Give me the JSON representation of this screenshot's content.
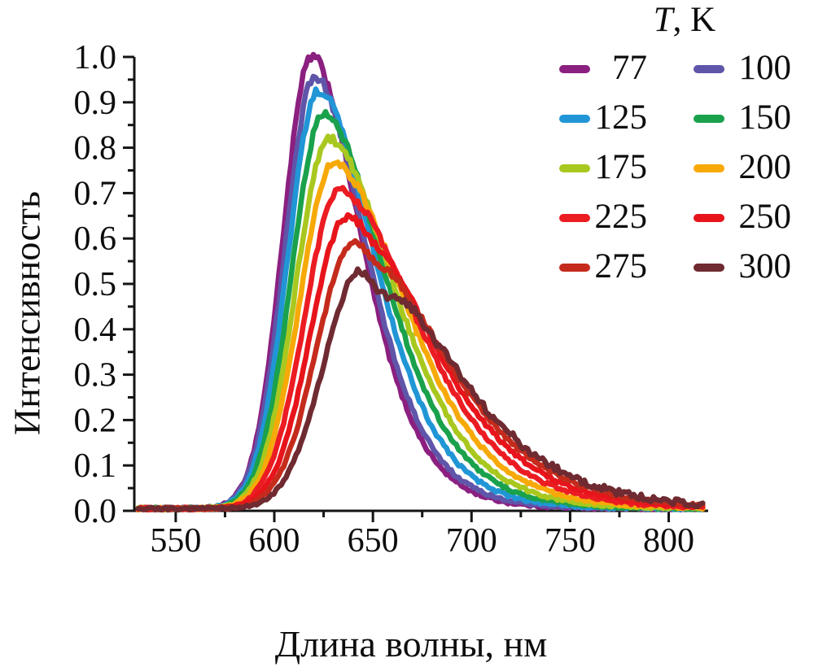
{
  "figure": {
    "background": "#ffffff",
    "axis_color": "#141414",
    "text_color": "#0d0d0d"
  },
  "chart_data": {
    "type": "line",
    "title": "",
    "xlabel": "Длина волны, нм",
    "ylabel": "Интенсивность",
    "xlim": [
      529,
      820
    ],
    "ylim": [
      0.0,
      1.0
    ],
    "grid": false,
    "legend_position": "top-right",
    "x_major_ticks": [
      550,
      600,
      650,
      700,
      750,
      800
    ],
    "x_tick_labels": [
      "550",
      "600",
      "650",
      "700",
      "750",
      "800"
    ],
    "x_minor_ticks": [
      575,
      625,
      675,
      725,
      775
    ],
    "y_major_ticks": [
      0.0,
      0.1,
      0.2,
      0.3,
      0.4,
      0.5,
      0.6,
      0.7,
      0.8,
      0.9,
      1.0
    ],
    "y_tick_labels": [
      "0.0",
      "0.1",
      "0.2",
      "0.3",
      "0.4",
      "0.5",
      "0.6",
      "0.7",
      "0.8",
      "0.9",
      "1.0"
    ],
    "y_minor_ticks": [
      0.05,
      0.15,
      0.25,
      0.35,
      0.45,
      0.55,
      0.65,
      0.75,
      0.85,
      0.95
    ],
    "legend": {
      "title_var": "T",
      "title_unit": ", K",
      "columns": [
        [
          0,
          2,
          4,
          6,
          8
        ],
        [
          1,
          3,
          5,
          7,
          9
        ]
      ]
    },
    "baseline_intensity": 0.005,
    "tail_skew": 0.12,
    "series": [
      {
        "name": "77",
        "temperature_K": 77,
        "color": "#8B2080",
        "peak_nm": 619,
        "peak_intensity": 0.995,
        "sigma_left_nm": 14.5,
        "sigma_right_nm": 22,
        "dip_nm": 0,
        "dip_amp": 0,
        "dip_w": 1
      },
      {
        "name": "100",
        "temperature_K": 100,
        "color": "#5F55A9",
        "peak_nm": 620.5,
        "peak_intensity": 0.95,
        "sigma_left_nm": 15,
        "sigma_right_nm": 23,
        "dip_nm": 0,
        "dip_amp": 0,
        "dip_w": 1
      },
      {
        "name": "125",
        "temperature_K": 125,
        "color": "#2196D6",
        "peak_nm": 622.5,
        "peak_intensity": 0.92,
        "sigma_left_nm": 15.5,
        "sigma_right_nm": 25,
        "dip_nm": 0,
        "dip_amp": 0,
        "dip_w": 1
      },
      {
        "name": "150",
        "temperature_K": 150,
        "color": "#1AA14C",
        "peak_nm": 625,
        "peak_intensity": 0.87,
        "sigma_left_nm": 16,
        "sigma_right_nm": 27,
        "dip_nm": 0,
        "dip_amp": 0,
        "dip_w": 1
      },
      {
        "name": "175",
        "temperature_K": 175,
        "color": "#A9C81F",
        "peak_nm": 627.5,
        "peak_intensity": 0.815,
        "sigma_left_nm": 16.5,
        "sigma_right_nm": 29,
        "dip_nm": 0,
        "dip_amp": 0,
        "dip_w": 1
      },
      {
        "name": "200",
        "temperature_K": 200,
        "color": "#F7A908",
        "peak_nm": 630,
        "peak_intensity": 0.76,
        "sigma_left_nm": 17,
        "sigma_right_nm": 31.5,
        "dip_nm": 0,
        "dip_amp": 0,
        "dip_w": 1
      },
      {
        "name": "225",
        "temperature_K": 225,
        "color": "#EC1C23",
        "peak_nm": 633,
        "peak_intensity": 0.7,
        "sigma_left_nm": 17.5,
        "sigma_right_nm": 34,
        "dip_nm": 0,
        "dip_amp": 0,
        "dip_w": 1
      },
      {
        "name": "250",
        "temperature_K": 250,
        "color": "#E8141B",
        "peak_nm": 636.5,
        "peak_intensity": 0.64,
        "sigma_left_nm": 18,
        "sigma_right_nm": 36.5,
        "dip_nm": 651,
        "dip_amp": 0.025,
        "dip_w": 6
      },
      {
        "name": "275",
        "temperature_K": 275,
        "color": "#C52B1C",
        "peak_nm": 640,
        "peak_intensity": 0.585,
        "sigma_left_nm": 18.5,
        "sigma_right_nm": 38.5,
        "dip_nm": 652,
        "dip_amp": 0.04,
        "dip_w": 6
      },
      {
        "name": "300",
        "temperature_K": 300,
        "color": "#6F2B31",
        "peak_nm": 644,
        "peak_intensity": 0.525,
        "sigma_left_nm": 19,
        "sigma_right_nm": 40.5,
        "dip_nm": 655,
        "dip_amp": 0.065,
        "dip_w": 7
      }
    ]
  }
}
